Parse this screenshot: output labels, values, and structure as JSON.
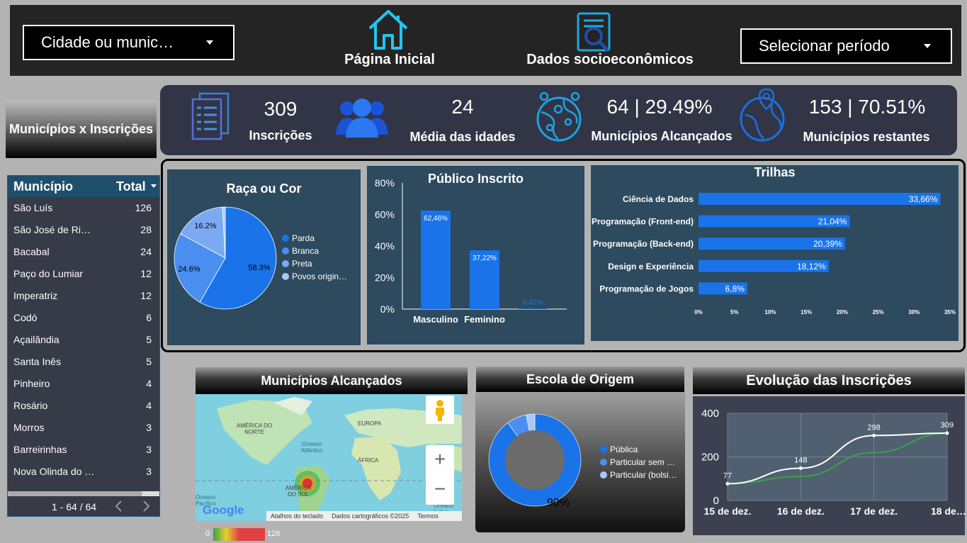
{
  "header": {
    "city_select": "Cidade ou munic…",
    "home_label": "Página Inicial",
    "socio_label": "Dados socioeconômicos",
    "period_select": "Selecionar período"
  },
  "kpi": {
    "title": "Municípios x Inscrições",
    "inscricoes_value": "309",
    "inscricoes_label": "Inscrições",
    "idade_value": "24",
    "idade_label": "Média das idades",
    "alcancados_value": "64 | 29.49%",
    "alcancados_label": "Municípios Alcançados",
    "restantes_value": "153 | 70.51%",
    "restantes_label": "Municípios restantes"
  },
  "table": {
    "col1": "Município",
    "col2": "Total",
    "rows": [
      {
        "name": "São Luís",
        "total": "126"
      },
      {
        "name": "São José de Ri…",
        "total": "28"
      },
      {
        "name": "Bacabal",
        "total": "24"
      },
      {
        "name": "Paço do Lumiar",
        "total": "12"
      },
      {
        "name": "Imperatriz",
        "total": "12"
      },
      {
        "name": "Codó",
        "total": "6"
      },
      {
        "name": "Açailândia",
        "total": "5"
      },
      {
        "name": "Santa Inês",
        "total": "5"
      },
      {
        "name": "Pinheiro",
        "total": "4"
      },
      {
        "name": "Rosário",
        "total": "4"
      },
      {
        "name": "Morros",
        "total": "3"
      },
      {
        "name": "Barreirinhas",
        "total": "3"
      },
      {
        "name": "Nova Olinda do …",
        "total": "3"
      }
    ],
    "pagination": "1 - 64 / 64"
  },
  "chart_data": [
    {
      "type": "pie",
      "title": "Raça ou Cor",
      "categories": [
        "Parda",
        "Branca",
        "Preta",
        "Povos origin…"
      ],
      "values": [
        58.3,
        24.6,
        16.2,
        0.9
      ],
      "labels": [
        "58.3%",
        "24.6%",
        "16.2%",
        ""
      ],
      "colors": [
        "#1a73e8",
        "#4a8ef0",
        "#7baaf2",
        "#a9c8f7"
      ]
    },
    {
      "type": "bar",
      "title": "Público Inscrito",
      "categories": [
        "Masculino",
        "Feminino",
        ""
      ],
      "values": [
        62.46,
        37.22,
        0.32
      ],
      "labels": [
        "62,46%",
        "37,22%",
        "0,32%"
      ],
      "yticks": [
        "0%",
        "20%",
        "40%",
        "60%",
        "80%"
      ],
      "ylim": [
        0,
        80
      ]
    },
    {
      "type": "bar",
      "title": "Trilhas",
      "categories": [
        "Ciência de Dados",
        "Programação (Front-end)",
        "Programação (Back-end)",
        "Design e Experiência",
        "Programação de Jogos"
      ],
      "values": [
        33.66,
        21.04,
        20.39,
        18.12,
        6.8
      ],
      "labels": [
        "33,66%",
        "21,04%",
        "20,39%",
        "18,12%",
        "6,8%"
      ],
      "xticks": [
        "0%",
        "5%",
        "10%",
        "15%",
        "20%",
        "25%",
        "30%",
        "35%"
      ],
      "xlim": [
        0,
        35
      ]
    },
    {
      "type": "pie",
      "title": "Escola de Origem",
      "categories": [
        "Pública",
        "Particular sem …",
        "Particular (bolsi…"
      ],
      "values": [
        90,
        7,
        3
      ],
      "labels": [
        "90%",
        "",
        ""
      ],
      "colors": [
        "#1a73e8",
        "#4a8ef0",
        "#a9c8f7"
      ]
    },
    {
      "type": "line",
      "title": "Evolução das Inscrições",
      "categories": [
        "15 de dez.",
        "16 de dez.",
        "17 de dez.",
        "18 de…"
      ],
      "series": [
        {
          "values": [
            77,
            148,
            298,
            309
          ],
          "labels": [
            "77",
            "148",
            "298",
            "309"
          ],
          "color": "#ffffff"
        },
        {
          "values": [
            77,
            110,
            220,
            309
          ],
          "color": "#3aa14a"
        }
      ],
      "yticks": [
        "0",
        "200",
        "400"
      ],
      "ylim": [
        0,
        400
      ]
    }
  ],
  "map": {
    "title": "Municípios Alcançados",
    "labels": [
      "AMÉRICA DO NORTE",
      "EUROPA",
      "Oceano Atlântico",
      "ÁFRICA",
      "AMÉRICA DO SUL",
      "Oceano Pacífico",
      "Oceano Índico"
    ],
    "footer": [
      "Atalhos do teclado",
      "Dados cartográficos ©2025",
      "Termos"
    ],
    "google": "Google",
    "legend_min": "0",
    "legend_max": "126"
  },
  "colors": {
    "accent": "#1a73e8",
    "panel": "#2d4a5e",
    "kpi_bg": "#313546",
    "table_bg": "#373a47"
  }
}
